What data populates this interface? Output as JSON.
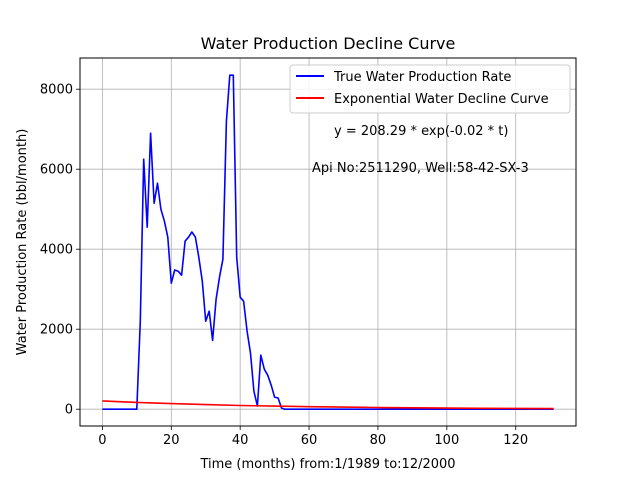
{
  "chart_data": {
    "type": "line",
    "title": "Water Production Decline Curve",
    "xlabel": "Time (months) from:1/1989 to:12/2000",
    "ylabel": "Water Production Rate (bbl/month)",
    "xlim": [
      -6.5,
      137.5
    ],
    "ylim": [
      -420,
      8780
    ],
    "xticks": [
      0,
      20,
      40,
      60,
      80,
      100,
      120
    ],
    "yticks": [
      0,
      2000,
      4000,
      6000,
      8000
    ],
    "grid": true,
    "legend_position": "top-right",
    "annotations": [
      "y = 208.29 * exp(-0.02 * t)",
      "Api No:2511290, Well:58-42-SX-3"
    ],
    "series": [
      {
        "name": "True Water Production Rate",
        "color": "#0000ff",
        "x": [
          0,
          1,
          2,
          3,
          4,
          5,
          6,
          7,
          8,
          9,
          10,
          11,
          12,
          13,
          14,
          15,
          16,
          17,
          18,
          19,
          20,
          21,
          22,
          23,
          24,
          25,
          26,
          27,
          28,
          29,
          30,
          31,
          32,
          33,
          34,
          35,
          36,
          37,
          38,
          39,
          40,
          41,
          42,
          43,
          44,
          45,
          46,
          47,
          48,
          49,
          50,
          51,
          52,
          53,
          54,
          55,
          60,
          70,
          80,
          90,
          100,
          110,
          120,
          131
        ],
        "y": [
          0,
          0,
          0,
          0,
          0,
          0,
          0,
          0,
          0,
          0,
          0,
          2200,
          6250,
          4550,
          6900,
          5150,
          5650,
          5000,
          4700,
          4300,
          3150,
          3480,
          3450,
          3350,
          4200,
          4300,
          4430,
          4300,
          3800,
          3200,
          2200,
          2450,
          1720,
          2750,
          3300,
          3750,
          7200,
          8350,
          8350,
          3800,
          2800,
          2700,
          1950,
          1400,
          450,
          80,
          1350,
          1000,
          850,
          600,
          300,
          280,
          30,
          0,
          0,
          0,
          0,
          0,
          0,
          0,
          0,
          0,
          0,
          0
        ]
      },
      {
        "name": "Exponential Water Decline Curve",
        "color": "#ff0000",
        "equation_a": 208.29,
        "equation_b": -0.02,
        "x": [
          0,
          10,
          20,
          30,
          40,
          50,
          60,
          70,
          80,
          90,
          100,
          110,
          120,
          131
        ],
        "y": [
          208.29,
          170.53,
          139.62,
          114.31,
          93.59,
          76.62,
          62.73,
          51.36,
          42.05,
          34.43,
          28.19,
          23.08,
          18.89,
          15.16
        ]
      }
    ]
  }
}
